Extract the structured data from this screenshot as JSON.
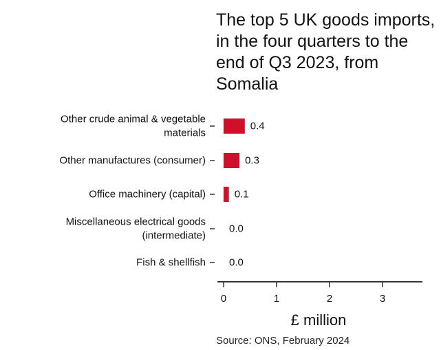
{
  "chart_data": {
    "type": "bar",
    "orientation": "horizontal",
    "title": "The top 5 UK goods imports, in the four quarters to the end of Q3 2023, from Somalia",
    "categories": [
      [
        "Other crude animal & vegetable",
        "materials"
      ],
      [
        "Other manufactures (consumer)"
      ],
      [
        "Office machinery (capital)"
      ],
      [
        "Miscellaneous electrical goods",
        "(intermediate)"
      ],
      [
        "Fish & shellfish"
      ]
    ],
    "values": [
      0.4,
      0.3,
      0.1,
      0.0,
      0.0
    ],
    "value_labels": [
      "0.4",
      "0.3",
      "0.1",
      "0.0",
      "0.0"
    ],
    "xlabel": "£ million",
    "xlim": [
      0,
      3.8
    ],
    "xticks": [
      0,
      1,
      2,
      3
    ],
    "bar_color": "#d0102a",
    "grid": false,
    "source": "Source: ONS, February 2024"
  }
}
